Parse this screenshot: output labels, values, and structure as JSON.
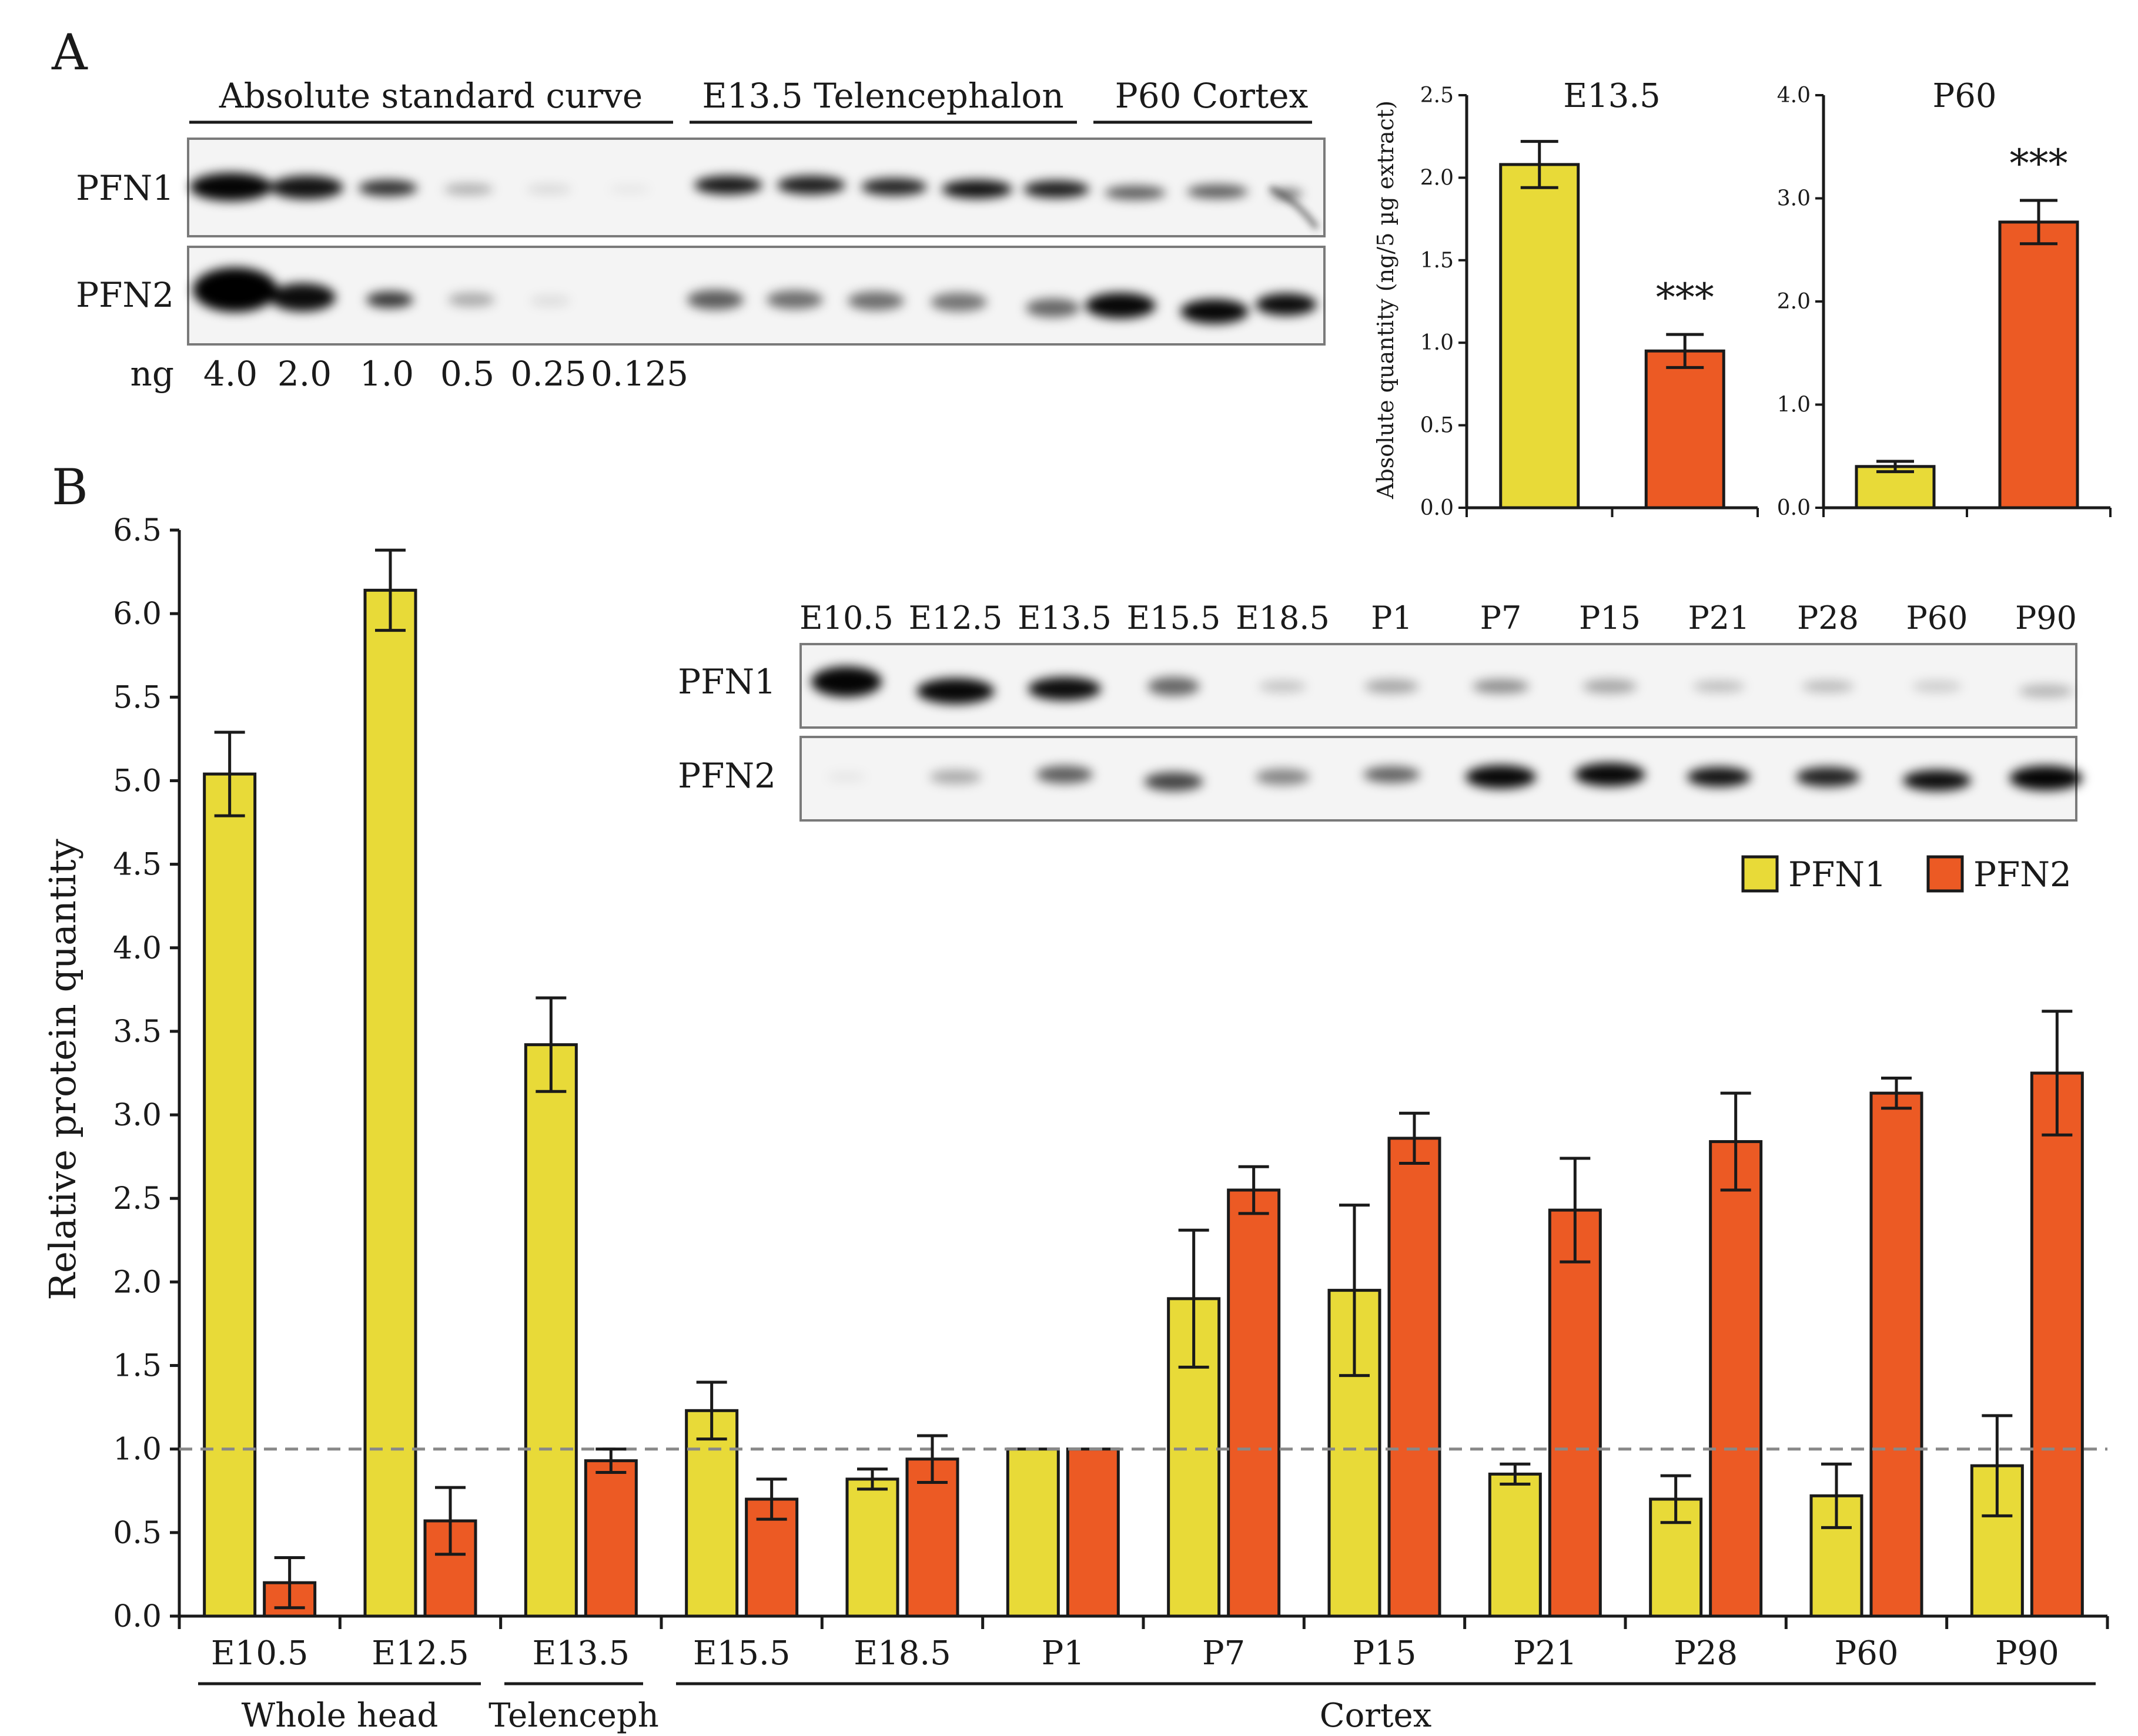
{
  "panel_labels": {
    "a": "A",
    "b": "B"
  },
  "colors": {
    "pfn1": "#e8da38",
    "pfn2": "#ec5a24",
    "axis": "#1a1a1a",
    "reference_line": "#888888",
    "blot_frame": "#7a7a7a"
  },
  "blot_a": {
    "groups": [
      "Absolute standard curve",
      "E13.5 Telencephalon",
      "P60 Cortex"
    ],
    "rows": [
      "PFN1",
      "PFN2"
    ],
    "ng_label": "ng",
    "ng_values": [
      "4.0",
      "2.0",
      "1.0",
      "0.5",
      "0.25",
      "0.125"
    ]
  },
  "inset_blot": {
    "lanes": [
      "E10.5",
      "E12.5",
      "E13.5",
      "E15.5",
      "E18.5",
      "P1",
      "P7",
      "P15",
      "P21",
      "P28",
      "P60",
      "P90"
    ],
    "rows": [
      "PFN1",
      "PFN2"
    ]
  },
  "chart_data": [
    {
      "id": "a-e13-5",
      "type": "bar",
      "title": "E13.5",
      "ylabel": "Absolute quantity (ng/5 µg extract)",
      "ylim": [
        0,
        2.5
      ],
      "yticks": [
        "0.0",
        "0.5",
        "1.0",
        "1.5",
        "2.0",
        "2.5"
      ],
      "categories": [
        "PFN1",
        "PFN2"
      ],
      "values": [
        2.08,
        0.95
      ],
      "errors": [
        0.14,
        0.1
      ],
      "annotations": [
        "",
        "***"
      ]
    },
    {
      "id": "a-p60",
      "type": "bar",
      "title": "P60",
      "ylabel": "",
      "ylim": [
        0,
        4.0
      ],
      "yticks": [
        "0.0",
        "1.0",
        "2.0",
        "3.0",
        "4.0"
      ],
      "categories": [
        "PFN1",
        "PFN2"
      ],
      "values": [
        0.4,
        2.77
      ],
      "errors": [
        0.05,
        0.21
      ],
      "annotations": [
        "",
        "***"
      ]
    },
    {
      "id": "b-development",
      "type": "bar",
      "title": "",
      "xlabel": "",
      "ylabel": "Relative protein quantity",
      "ylim": [
        0,
        6.5
      ],
      "yticks": [
        "0.0",
        "0.5",
        "1.0",
        "1.5",
        "2.0",
        "2.5",
        "3.0",
        "3.5",
        "4.0",
        "4.5",
        "5.0",
        "5.5",
        "6.0",
        "6.5"
      ],
      "reference_line": 1.0,
      "categories": [
        "E10.5",
        "E12.5",
        "E13.5",
        "E15.5",
        "E18.5",
        "P1",
        "P7",
        "P15",
        "P21",
        "P28",
        "P60",
        "P90"
      ],
      "series": [
        {
          "name": "PFN1",
          "values": [
            5.04,
            6.14,
            3.42,
            1.23,
            0.82,
            1.0,
            1.9,
            1.95,
            0.85,
            0.7,
            0.72,
            0.9
          ],
          "errors": [
            0.25,
            0.24,
            0.28,
            0.17,
            0.06,
            0.0,
            0.41,
            0.51,
            0.06,
            0.14,
            0.19,
            0.3
          ]
        },
        {
          "name": "PFN2",
          "values": [
            0.2,
            0.57,
            0.93,
            0.7,
            0.94,
            1.0,
            2.55,
            2.86,
            2.43,
            2.84,
            3.13,
            3.25
          ],
          "errors": [
            0.15,
            0.2,
            0.07,
            0.12,
            0.14,
            0.0,
            0.14,
            0.15,
            0.31,
            0.29,
            0.09,
            0.37
          ]
        }
      ],
      "groups": [
        "Whole head",
        "Telenceph",
        "Cortex"
      ],
      "legend": [
        "PFN1",
        "PFN2"
      ]
    }
  ]
}
